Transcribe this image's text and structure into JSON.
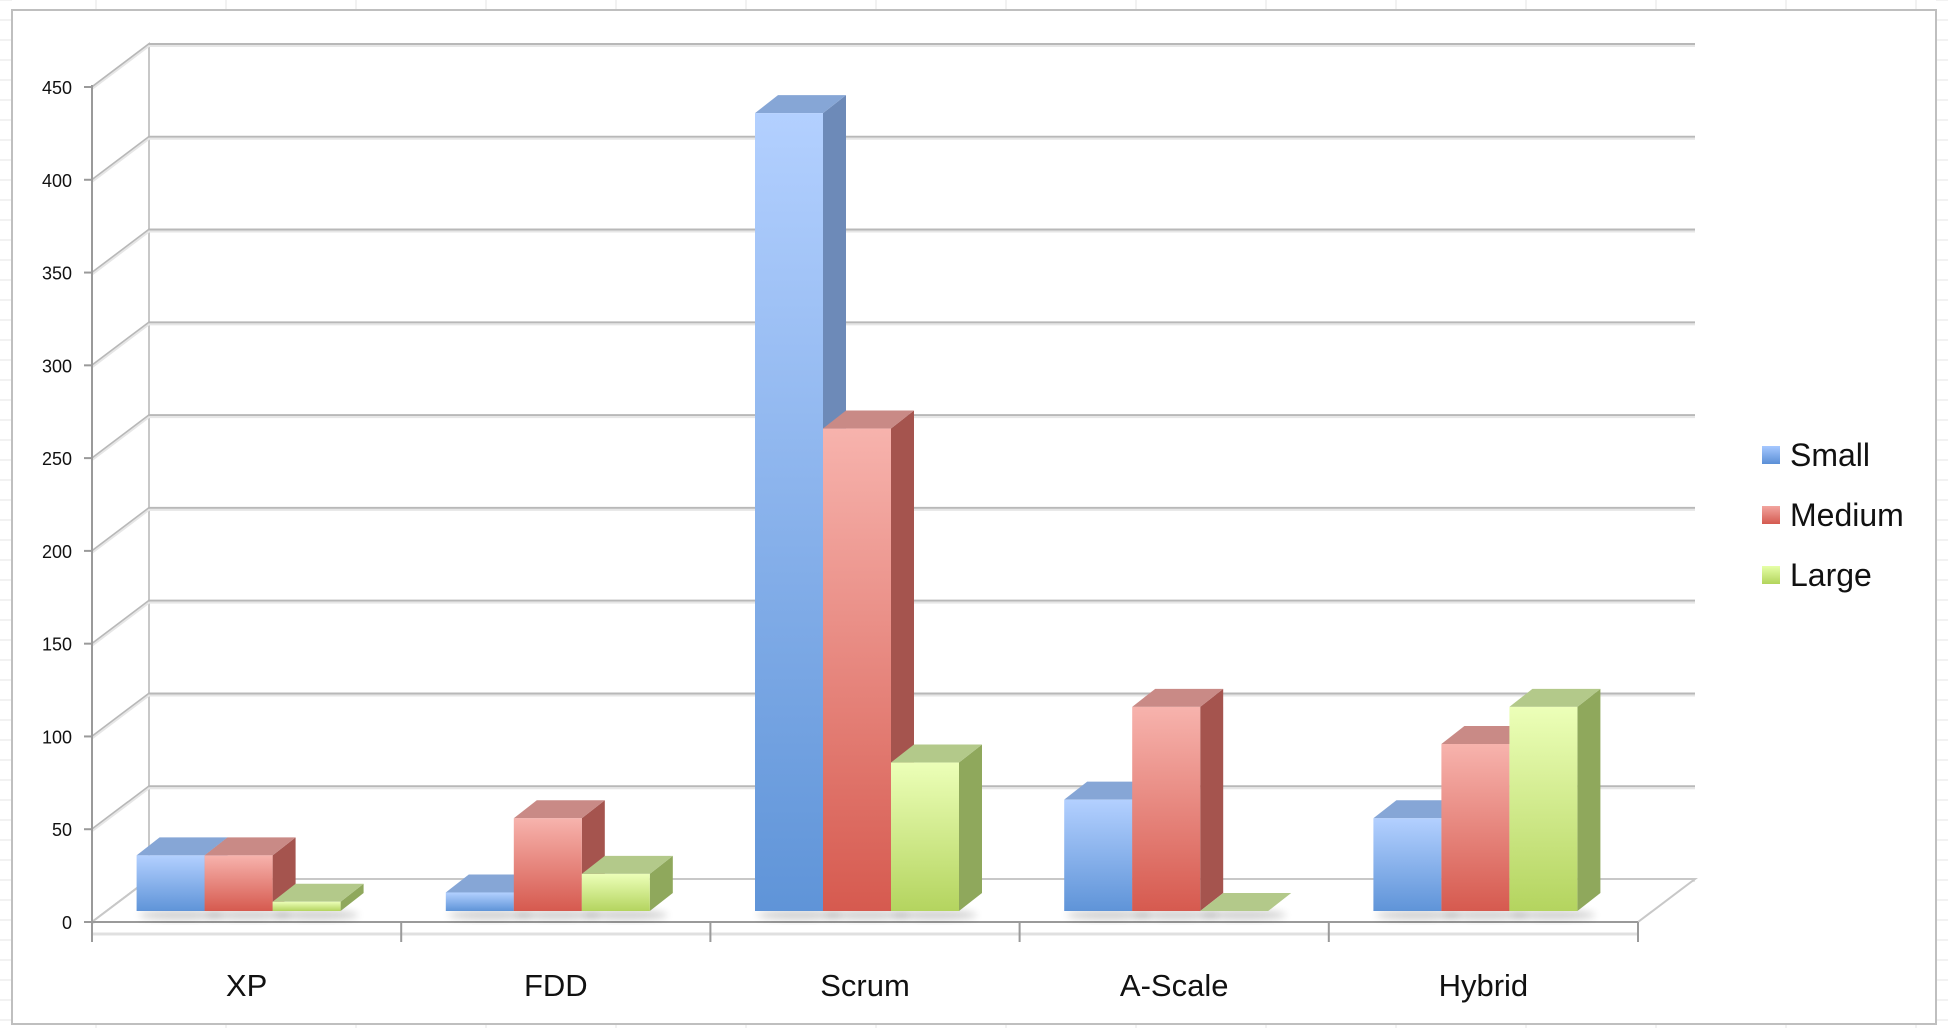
{
  "chart_data": {
    "type": "bar",
    "title": "",
    "xlabel": "",
    "ylabel": "",
    "ylim": [
      0,
      450
    ],
    "ytick_labels": [
      "0",
      "50",
      "100",
      "150",
      "200",
      "250",
      "300",
      "350",
      "400",
      "450"
    ],
    "yticks": [
      0,
      50,
      100,
      150,
      200,
      250,
      300,
      350,
      400,
      450
    ],
    "categories": [
      "XP",
      "FDD",
      "Scrum",
      "A-Scale",
      "Hybrid"
    ],
    "series": [
      {
        "name": "Small",
        "values": [
          30,
          10,
          430,
          60,
          50
        ],
        "color": "#6f9fe0"
      },
      {
        "name": "Medium",
        "values": [
          30,
          50,
          260,
          110,
          90
        ],
        "color": "#e06a60"
      },
      {
        "name": "Large",
        "values": [
          5,
          20,
          80,
          0,
          110
        ],
        "color": "#c6e07a"
      }
    ],
    "grid": true,
    "legend_position": "right",
    "style": "3d-column"
  }
}
